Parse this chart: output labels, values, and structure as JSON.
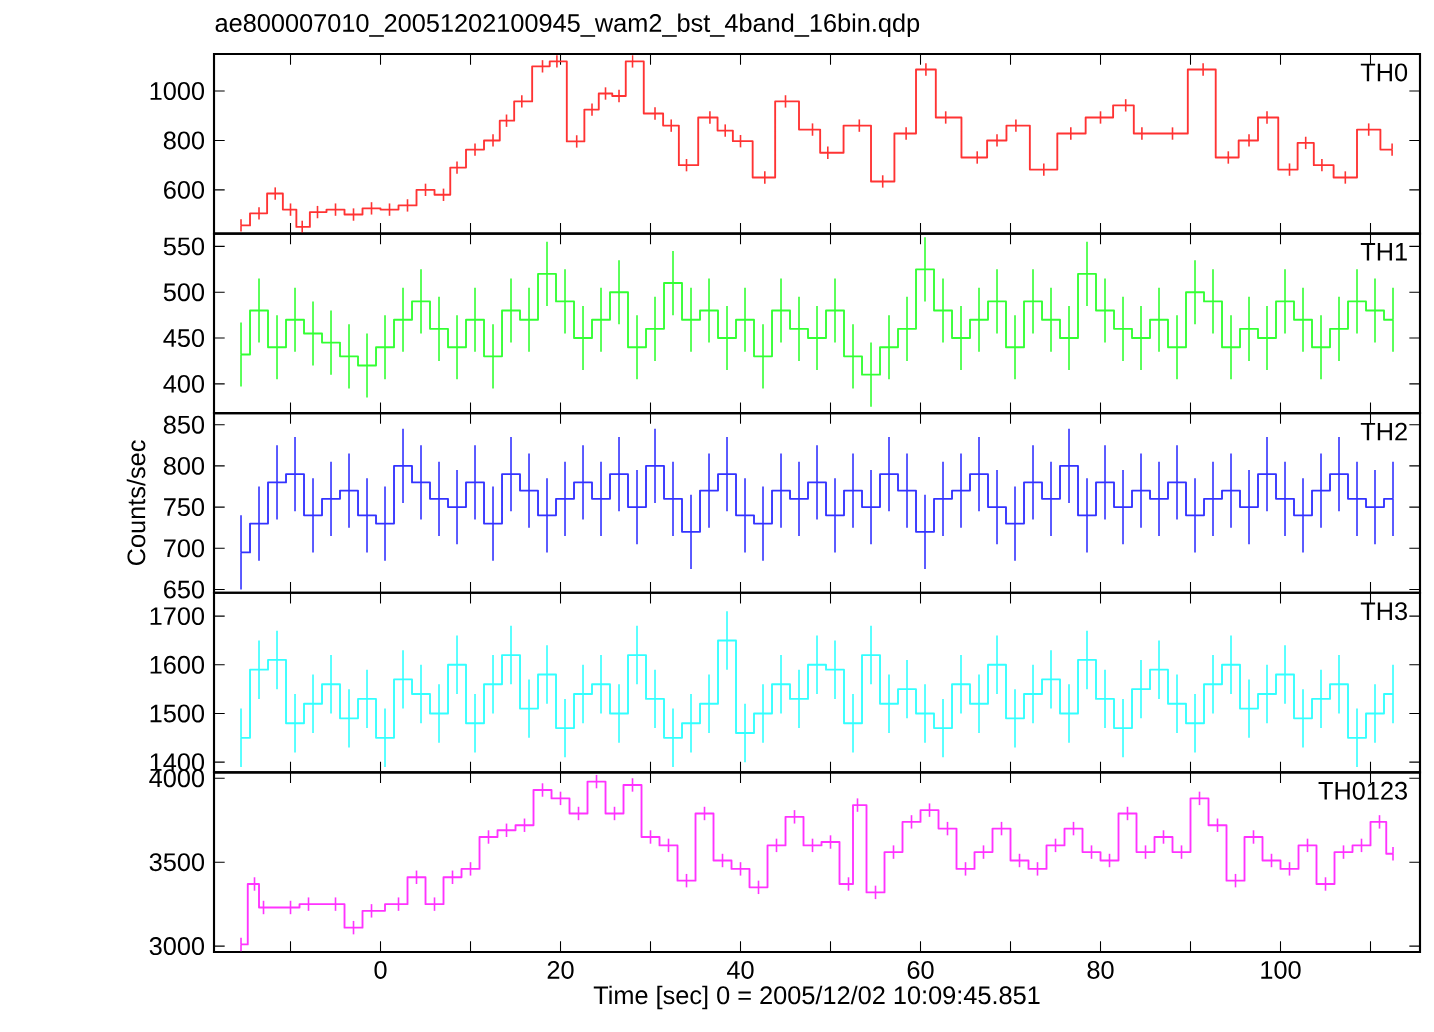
{
  "chart_data": [
    {
      "type": "step",
      "title": "ae800007010_20051202100945_wam2_bst_4band_16bin.qdp",
      "tick_labels": "y",
      "xlim": [
        -18.5,
        115.5
      ],
      "ylim": [
        423,
        1150
      ],
      "yticks": [
        600,
        800,
        1000
      ],
      "xticks": [
        {
          "value": -10,
          "label": null
        },
        0,
        {
          "value": 10,
          "label": null
        },
        20,
        {
          "value": 30,
          "label": null
        },
        40,
        {
          "value": 50,
          "label": null
        },
        60,
        {
          "value": 70,
          "label": null
        },
        80,
        {
          "value": 90,
          "label": null
        },
        100,
        {
          "value": 110,
          "label": null
        }
      ],
      "x": [
        -15.5,
        -13.5,
        -11.7,
        -10,
        -8.7,
        -7,
        -5,
        -3,
        -1,
        1,
        3,
        5,
        7,
        8.5,
        10.5,
        12.5,
        14,
        15.7,
        18,
        19.6,
        21.8,
        23.5,
        25,
        26.5,
        28,
        30.5,
        32.3,
        34,
        36.6,
        38.3,
        40,
        42.7,
        45,
        48,
        49.7,
        53.2,
        55.8,
        58.4,
        60.6,
        62.8,
        66.3,
        68.5,
        70.6,
        73.7,
        76.7,
        80,
        82.8,
        84.6,
        88,
        91.4,
        94.2,
        96.5,
        98.5,
        101,
        102.8,
        104.6,
        107.2,
        109.8,
        112.4
      ],
      "series": [
        {
          "name": "TH0",
          "color": "#ff3333",
          "values": [
            456,
            505,
            585,
            520,
            450,
            510,
            520,
            500,
            525,
            520,
            537,
            600,
            580,
            690,
            763,
            800,
            880,
            958,
            1100,
            1120,
            796,
            925,
            990,
            980,
            1120,
            909,
            860,
            700,
            893,
            840,
            797,
            650,
            958,
            844,
            750,
            860,
            634,
            828,
            1087,
            893,
            731,
            800,
            860,
            682,
            828,
            893,
            942,
            828,
            828,
            1087,
            731,
            800,
            893,
            682,
            790,
            700,
            650,
            844,
            763
          ],
          "errors": [
            25,
            25,
            25,
            25,
            25,
            25,
            25,
            25,
            25,
            25,
            25,
            25,
            25,
            25,
            25,
            25,
            25,
            25,
            25,
            25,
            25,
            25,
            25,
            25,
            25,
            25,
            25,
            25,
            25,
            25,
            25,
            25,
            25,
            25,
            25,
            25,
            25,
            25,
            25,
            25,
            25,
            25,
            25,
            25,
            25,
            25,
            25,
            25,
            25,
            25,
            25,
            25,
            25,
            25,
            25,
            25,
            25,
            25,
            25
          ]
        }
      ]
    },
    {
      "type": "step",
      "tick_labels": "y",
      "xlim": [
        -18.5,
        115.5
      ],
      "ylim": [
        368,
        564
      ],
      "yticks": [
        400,
        450,
        500,
        550
      ],
      "xticks": [
        {
          "value": -10,
          "label": null
        },
        0,
        {
          "value": 10,
          "label": null
        },
        20,
        {
          "value": 30,
          "label": null
        },
        40,
        {
          "value": 50,
          "label": null
        },
        60,
        {
          "value": 70,
          "label": null
        },
        80,
        {
          "value": 90,
          "label": null
        },
        100,
        {
          "value": 110,
          "label": null
        }
      ],
      "x": [
        -15.5,
        -13.5,
        -11.5,
        -9.5,
        -7.5,
        -5.5,
        -3.5,
        -1.5,
        0.5,
        2.5,
        4.5,
        6.5,
        8.5,
        10.5,
        12.5,
        14.5,
        16.5,
        18.5,
        20.5,
        22.5,
        24.5,
        26.5,
        28.5,
        30.5,
        32.5,
        34.5,
        36.5,
        38.5,
        40.5,
        42.5,
        44.5,
        46.5,
        48.5,
        50.5,
        52.5,
        54.5,
        56.5,
        58.5,
        60.5,
        62.5,
        64.5,
        66.5,
        68.5,
        70.5,
        72.5,
        74.5,
        76.5,
        78.5,
        80.5,
        82.5,
        84.5,
        86.5,
        88.5,
        90.5,
        92.5,
        94.5,
        96.5,
        98.5,
        100.5,
        102.5,
        104.5,
        106.5,
        108.5,
        110.5,
        112.5
      ],
      "series": [
        {
          "name": "TH1",
          "color": "#33ff33",
          "values": [
            432,
            480,
            440,
            470,
            455,
            445,
            430,
            420,
            440,
            470,
            490,
            460,
            440,
            470,
            430,
            480,
            470,
            520,
            490,
            450,
            470,
            500,
            440,
            460,
            510,
            470,
            480,
            450,
            470,
            430,
            480,
            460,
            450,
            480,
            430,
            410,
            440,
            460,
            525,
            480,
            450,
            470,
            490,
            440,
            490,
            470,
            450,
            520,
            480,
            460,
            450,
            470,
            440,
            500,
            490,
            440,
            460,
            450,
            490,
            470,
            440,
            460,
            490,
            480,
            470
          ],
          "errors": [
            35,
            35,
            35,
            35,
            35,
            35,
            35,
            35,
            35,
            35,
            35,
            35,
            35,
            35,
            35,
            35,
            35,
            35,
            35,
            35,
            35,
            35,
            35,
            35,
            35,
            35,
            35,
            35,
            35,
            35,
            35,
            35,
            35,
            35,
            35,
            35,
            35,
            35,
            35,
            35,
            35,
            35,
            35,
            35,
            35,
            35,
            35,
            35,
            35,
            35,
            35,
            35,
            35,
            35,
            35,
            35,
            35,
            35,
            35,
            35,
            35,
            35,
            35,
            35,
            35
          ]
        }
      ]
    },
    {
      "type": "step",
      "tick_labels": "y",
      "ylabel": "Counts/sec",
      "xlim": [
        -18.5,
        115.5
      ],
      "ylim": [
        646,
        864
      ],
      "yticks": [
        650,
        700,
        750,
        800,
        850
      ],
      "xticks": [
        {
          "value": -10,
          "label": null
        },
        0,
        {
          "value": 10,
          "label": null
        },
        20,
        {
          "value": 30,
          "label": null
        },
        40,
        {
          "value": 50,
          "label": null
        },
        60,
        {
          "value": 70,
          "label": null
        },
        80,
        {
          "value": 90,
          "label": null
        },
        100,
        {
          "value": 110,
          "label": null
        }
      ],
      "x": [
        -15.5,
        -13.5,
        -11.5,
        -9.5,
        -7.5,
        -5.5,
        -3.5,
        -1.5,
        0.5,
        2.5,
        4.5,
        6.5,
        8.5,
        10.5,
        12.5,
        14.5,
        16.5,
        18.5,
        20.5,
        22.5,
        24.5,
        26.5,
        28.5,
        30.5,
        32.5,
        34.5,
        36.5,
        38.5,
        40.5,
        42.5,
        44.5,
        46.5,
        48.5,
        50.5,
        52.5,
        54.5,
        56.5,
        58.5,
        60.5,
        62.5,
        64.5,
        66.5,
        68.5,
        70.5,
        72.5,
        74.5,
        76.5,
        78.5,
        80.5,
        82.5,
        84.5,
        86.5,
        88.5,
        90.5,
        92.5,
        94.5,
        96.5,
        98.5,
        100.5,
        102.5,
        104.5,
        106.5,
        108.5,
        110.5,
        112.5
      ],
      "series": [
        {
          "name": "TH2",
          "color": "#3333ff",
          "values": [
            695,
            730,
            780,
            790,
            740,
            760,
            770,
            740,
            730,
            800,
            780,
            760,
            750,
            780,
            730,
            790,
            770,
            740,
            760,
            780,
            760,
            790,
            750,
            800,
            760,
            720,
            770,
            790,
            740,
            730,
            770,
            760,
            780,
            740,
            770,
            750,
            790,
            770,
            720,
            760,
            770,
            790,
            750,
            730,
            780,
            760,
            800,
            740,
            780,
            750,
            770,
            760,
            780,
            740,
            760,
            770,
            750,
            790,
            760,
            740,
            770,
            790,
            760,
            750,
            760
          ],
          "errors": [
            45,
            45,
            45,
            45,
            45,
            45,
            45,
            45,
            45,
            45,
            45,
            45,
            45,
            45,
            45,
            45,
            45,
            45,
            45,
            45,
            45,
            45,
            45,
            45,
            45,
            45,
            45,
            45,
            45,
            45,
            45,
            45,
            45,
            45,
            45,
            45,
            45,
            45,
            45,
            45,
            45,
            45,
            45,
            45,
            45,
            45,
            45,
            45,
            45,
            45,
            45,
            45,
            45,
            45,
            45,
            45,
            45,
            45,
            45,
            45,
            45,
            45,
            45,
            45,
            45
          ]
        }
      ]
    },
    {
      "type": "step",
      "tick_labels": "y",
      "xlim": [
        -18.5,
        115.5
      ],
      "ylim": [
        1379,
        1748
      ],
      "yticks": [
        1400,
        1500,
        1600,
        1700
      ],
      "xticks": [
        {
          "value": -10,
          "label": null
        },
        0,
        {
          "value": 10,
          "label": null
        },
        20,
        {
          "value": 30,
          "label": null
        },
        40,
        {
          "value": 50,
          "label": null
        },
        60,
        {
          "value": 70,
          "label": null
        },
        80,
        {
          "value": 90,
          "label": null
        },
        100,
        {
          "value": 110,
          "label": null
        }
      ],
      "x": [
        -15.5,
        -13.5,
        -11.5,
        -9.5,
        -7.5,
        -5.5,
        -3.5,
        -1.5,
        0.5,
        2.5,
        4.5,
        6.5,
        8.5,
        10.5,
        12.5,
        14.5,
        16.5,
        18.5,
        20.5,
        22.5,
        24.5,
        26.5,
        28.5,
        30.5,
        32.5,
        34.5,
        36.5,
        38.5,
        40.5,
        42.5,
        44.5,
        46.5,
        48.5,
        50.5,
        52.5,
        54.5,
        56.5,
        58.5,
        60.5,
        62.5,
        64.5,
        66.5,
        68.5,
        70.5,
        72.5,
        74.5,
        76.5,
        78.5,
        80.5,
        82.5,
        84.5,
        86.5,
        88.5,
        90.5,
        92.5,
        94.5,
        96.5,
        98.5,
        100.5,
        102.5,
        104.5,
        106.5,
        108.5,
        110.5,
        112.5
      ],
      "series": [
        {
          "name": "TH3",
          "color": "#33ffff",
          "values": [
            1450,
            1590,
            1610,
            1480,
            1520,
            1560,
            1490,
            1530,
            1450,
            1570,
            1540,
            1500,
            1600,
            1480,
            1560,
            1620,
            1510,
            1580,
            1470,
            1540,
            1560,
            1500,
            1620,
            1530,
            1450,
            1480,
            1520,
            1650,
            1460,
            1500,
            1560,
            1530,
            1600,
            1590,
            1480,
            1620,
            1520,
            1550,
            1500,
            1470,
            1560,
            1520,
            1600,
            1490,
            1540,
            1570,
            1500,
            1610,
            1530,
            1470,
            1550,
            1590,
            1520,
            1480,
            1560,
            1600,
            1510,
            1540,
            1580,
            1490,
            1530,
            1560,
            1450,
            1500,
            1540
          ],
          "errors": [
            60,
            60,
            60,
            60,
            60,
            60,
            60,
            60,
            60,
            60,
            60,
            60,
            60,
            60,
            60,
            60,
            60,
            60,
            60,
            60,
            60,
            60,
            60,
            60,
            60,
            60,
            60,
            60,
            60,
            60,
            60,
            60,
            60,
            60,
            60,
            60,
            60,
            60,
            60,
            60,
            60,
            60,
            60,
            60,
            60,
            60,
            60,
            60,
            60,
            60,
            60,
            60,
            60,
            60,
            60,
            60,
            60,
            60,
            60,
            60,
            60,
            60,
            60,
            60,
            60
          ]
        }
      ]
    },
    {
      "type": "step",
      "xlabel": "Time [sec] 0 = 2005/12/02 10:09:45.851",
      "xlim": [
        -18.5,
        115.5
      ],
      "ylim": [
        2965,
        4035
      ],
      "yticks": [
        3000,
        3500,
        4000
      ],
      "xticks": [
        {
          "value": -10,
          "label": null
        },
        0,
        {
          "value": 10,
          "label": null
        },
        20,
        {
          "value": 30,
          "label": null
        },
        40,
        {
          "value": 50,
          "label": null
        },
        60,
        {
          "value": 70,
          "label": null
        },
        80,
        {
          "value": 90,
          "label": null
        },
        100,
        {
          "value": 110,
          "label": null
        }
      ],
      "x": [
        -15.5,
        -14,
        -13,
        -10,
        -8,
        -5,
        -3,
        -1,
        2,
        4,
        6,
        8,
        10,
        12,
        14,
        16,
        18,
        20,
        22,
        24,
        26,
        28,
        30,
        32,
        34,
        36,
        38,
        40,
        42,
        44,
        46,
        48,
        50,
        52,
        53,
        55,
        57,
        59,
        61,
        63,
        65,
        67,
        69,
        71,
        73,
        75,
        77,
        79,
        81,
        83,
        85,
        87,
        89,
        91,
        93,
        95,
        97,
        99,
        101,
        103,
        105,
        107,
        109,
        111,
        112.5
      ],
      "series": [
        {
          "name": "TH0123",
          "color": "#ff33ff",
          "values": [
            3010,
            3370,
            3230,
            3230,
            3250,
            3250,
            3110,
            3210,
            3250,
            3410,
            3250,
            3410,
            3460,
            3650,
            3690,
            3720,
            3930,
            3880,
            3790,
            3980,
            3790,
            3960,
            3650,
            3600,
            3390,
            3790,
            3510,
            3460,
            3350,
            3600,
            3770,
            3600,
            3620,
            3370,
            3840,
            3320,
            3560,
            3740,
            3810,
            3700,
            3460,
            3560,
            3700,
            3510,
            3460,
            3600,
            3700,
            3560,
            3510,
            3790,
            3560,
            3650,
            3560,
            3880,
            3720,
            3390,
            3650,
            3510,
            3460,
            3600,
            3370,
            3560,
            3600,
            3740,
            3550
          ],
          "errors": [
            40,
            40,
            40,
            40,
            40,
            40,
            40,
            40,
            40,
            40,
            40,
            40,
            40,
            40,
            40,
            40,
            40,
            40,
            40,
            40,
            40,
            40,
            40,
            40,
            40,
            40,
            40,
            40,
            40,
            40,
            40,
            40,
            40,
            40,
            40,
            40,
            40,
            40,
            40,
            40,
            40,
            40,
            40,
            40,
            40,
            40,
            40,
            40,
            40,
            40,
            40,
            40,
            40,
            40,
            40,
            40,
            40,
            40,
            40,
            40,
            40,
            40,
            40,
            40,
            40
          ]
        }
      ]
    }
  ]
}
